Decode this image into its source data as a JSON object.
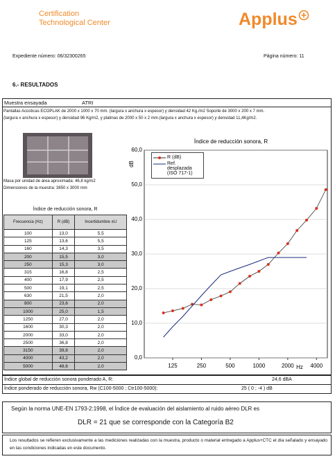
{
  "header": {
    "org_line1": "Certification",
    "org_line2": "Technological Center",
    "logo": "Applus"
  },
  "file_number": "Expediente número: 06/32300265",
  "page_number": "Página número: 11",
  "section": "6.- RESULTADOS",
  "sample": {
    "label": "Muestra ensayada",
    "name": "ATRI",
    "description": "Pantallas Acústicas ECOPLAK de 2000 x 1000 x 70 mm. (largura x anchura x espesor) y densidad 42 Kg./m2 Soporte de 3000 x 200 x 7 mm. (largura x anchura x espesor) y densidad 96 Kg/m2, y platinas de 2000 x 50 x 2 mm.(largura x anchura x espesor) y densidad 11,4Kg/m2.",
    "mass": "Masa por unidad de área aproximada: 46,8 kg/m2",
    "dimensions": "Dimensiones de la muestra: 3850 x 3000 mm"
  },
  "table": {
    "title": "Índice de reducción sonora, R",
    "headers": [
      "Frecuencia (Hz)",
      "R (dB)",
      "Incertidumbre ±U"
    ],
    "rows": [
      [
        "100",
        "13,0",
        "5,5"
      ],
      [
        "125",
        "13,6",
        "5,5"
      ],
      [
        "160",
        "14,3",
        "3,5"
      ],
      [
        "200",
        "15,5",
        "3,0"
      ],
      [
        "250",
        "15,3",
        "3,0"
      ],
      [
        "315",
        "16,8",
        "2,5"
      ],
      [
        "400",
        "17,9",
        "2,5"
      ],
      [
        "500",
        "19,1",
        "2,5"
      ],
      [
        "630",
        "21,5",
        "2,0"
      ],
      [
        "800",
        "23,6",
        "2,0"
      ],
      [
        "1000",
        "25,0",
        "1,5"
      ],
      [
        "1250",
        "27,0",
        "2,0"
      ],
      [
        "1600",
        "30,3",
        "2,0"
      ],
      [
        "2000",
        "33,0",
        "2,0"
      ],
      [
        "2500",
        "36,8",
        "2,0"
      ],
      [
        "3150",
        "39,8",
        "2,0"
      ],
      [
        "4000",
        "43,2",
        "2,0"
      ],
      [
        "5000",
        "48,6",
        "2,0"
      ]
    ]
  },
  "chart_data": {
    "type": "line",
    "title": "Índice de reducción sonora, R",
    "y_label": "dB",
    "x_label": "Hz",
    "x": [
      100,
      125,
      160,
      200,
      250,
      315,
      400,
      500,
      630,
      800,
      1000,
      1250,
      1600,
      2000,
      2500,
      3150,
      4000,
      5000
    ],
    "series": [
      {
        "name": "R (dB)",
        "color": "#d9321f",
        "values": [
          13.0,
          13.6,
          14.3,
          15.5,
          15.3,
          16.8,
          17.9,
          19.1,
          21.5,
          23.6,
          25.0,
          27.0,
          30.3,
          33.0,
          36.8,
          39.8,
          43.2,
          48.6
        ]
      },
      {
        "name": "Ref. desplazada (ISO 717-1)",
        "color": "#1b2a7a",
        "values": [
          6,
          9,
          12,
          15,
          18,
          21,
          24,
          25,
          26,
          27,
          28,
          29,
          29,
          29,
          29,
          29,
          null,
          null
        ]
      }
    ],
    "xlim": [
      63,
      5200
    ],
    "xscale": "log",
    "xticks": [
      125,
      250,
      500,
      1000,
      2000,
      4000
    ],
    "ylim": [
      0,
      60
    ],
    "yticks": [
      {
        "value": 0,
        "label": "0,0"
      },
      {
        "value": 10,
        "label": "10,0"
      },
      {
        "value": 20,
        "label": "20,0"
      },
      {
        "value": 30,
        "label": "30,0"
      },
      {
        "value": 40,
        "label": "40,0"
      },
      {
        "value": 50,
        "label": "50,0"
      },
      {
        "value": 60,
        "label": "60,0"
      }
    ],
    "grid": true,
    "legend": "upper left"
  },
  "summary": {
    "ra_label": "Índice global de reducción sonora ponderado A, R:",
    "ra_value": "24,6 dBA",
    "rw_label": "Índice ponderado de reducción sonora, Rw (C100-5000 ; Ctr100-5000):",
    "rw_value": "25 ( 0 ; -4 ) dB"
  },
  "classification": {
    "text": "Según la norma UNE-EN 1793-2:1998, el Índice de evaluación del aislamiento al ruido aéreo DLR es",
    "result": "DLR = 21 que se corresponde con la Categoría B2"
  },
  "footer": "Los resultados se refieren exclusivamente a las mediciones realizadas con la muestra, producto o material entregado a Applus+CTC el día señalado y ensayado en las condiciones indicadas en este documento."
}
